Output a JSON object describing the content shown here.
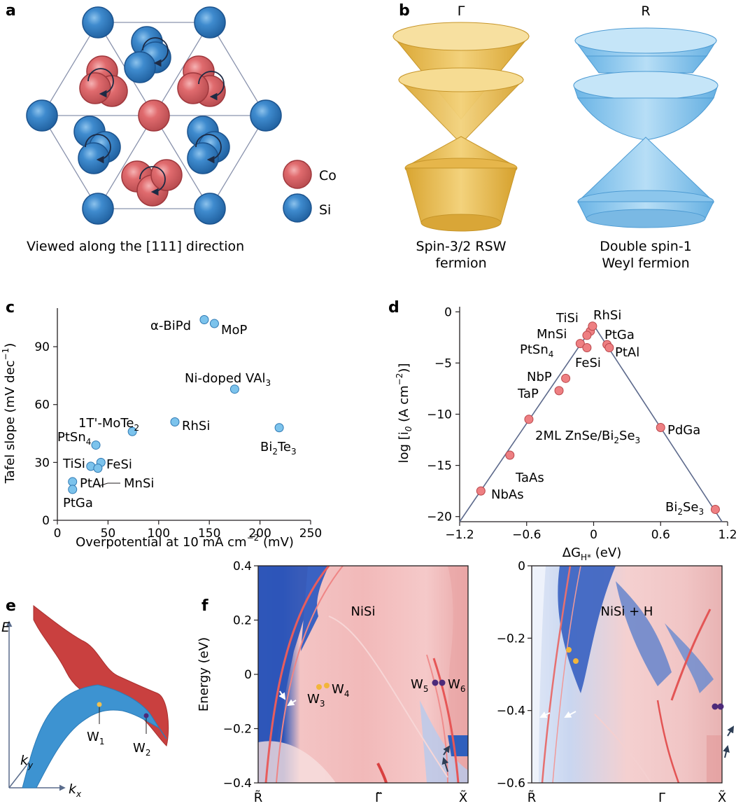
{
  "panels": {
    "a": "a",
    "b": "b",
    "c": "c",
    "d": "d",
    "e": "e",
    "f": "f"
  },
  "panel_a": {
    "caption": "Viewed along the [111] direction",
    "legend": [
      {
        "label": "Co",
        "color": "#e06b6e"
      },
      {
        "label": "Si",
        "color": "#3a86c8"
      }
    ]
  },
  "panel_b": {
    "gamma_label": "Γ",
    "r_label": "R",
    "gamma_caption_1": "Spin-3/2 RSW",
    "gamma_caption_2": "fermion",
    "r_caption_1": "Double spin-1",
    "r_caption_2": "Weyl fermion",
    "gamma_color": "#e8c15a",
    "r_color": "#8fc9ee"
  },
  "chart_data": [
    {
      "id": "c",
      "type": "scatter",
      "title": "",
      "xlabel": "Overpotential at 10 mA cm",
      "xlabel_sup": "−2",
      "xlabel_tail": " (mV)",
      "ylabel": "Tafel slope (mV dec",
      "ylabel_sup": "−1",
      "ylabel_tail": ")",
      "xlim": [
        0,
        250
      ],
      "ylim": [
        0,
        110
      ],
      "xticks": [
        "0",
        "50",
        "100",
        "150",
        "200",
        "250"
      ],
      "yticks": [
        "0",
        "30",
        "60",
        "90"
      ],
      "color": "#7cc3ec",
      "points": [
        {
          "name": "α-BiPd",
          "x": 145,
          "y": 104
        },
        {
          "name": "MoP",
          "x": 155,
          "y": 102
        },
        {
          "name": "Ni-doped VAl3",
          "x": 175,
          "y": 68
        },
        {
          "name": "Bi2Te3",
          "x": 219,
          "y": 48
        },
        {
          "name": "1T'-MoTe2",
          "x": 74,
          "y": 46
        },
        {
          "name": "RhSi",
          "x": 116,
          "y": 51
        },
        {
          "name": "PtSn4",
          "x": 38,
          "y": 39
        },
        {
          "name": "TiSi",
          "x": 33,
          "y": 28
        },
        {
          "name": "FeSi",
          "x": 43,
          "y": 30
        },
        {
          "name": "MnSi",
          "x": 40,
          "y": 27
        },
        {
          "name": "PtAl",
          "x": 15,
          "y": 20
        },
        {
          "name": "PtGa",
          "x": 15,
          "y": 16
        }
      ]
    },
    {
      "id": "d",
      "type": "scatter",
      "title": "",
      "xlabel": "ΔG",
      "xlabel_sub": "H*",
      "xlabel_tail": " (eV)",
      "ylabel": "log [i",
      "ylabel_sub": "0",
      "ylabel_tail": " (A cm",
      "ylabel_sup": "−2",
      "ylabel_end": ")]",
      "xlim": [
        -1.2,
        1.2
      ],
      "ylim": [
        -20.5,
        0.5
      ],
      "xticks": [
        "−1.2",
        "−0.6",
        "0",
        "0.6",
        "1.2"
      ],
      "yticks": [
        "0",
        "−5",
        "−10",
        "−15",
        "−20"
      ],
      "color": "#ee7f82",
      "volcano_line": [
        [
          -1.2,
          -20.5
        ],
        [
          0,
          -1.3
        ],
        [
          1.15,
          -20.5
        ]
      ],
      "points": [
        {
          "name": "TiSi",
          "x": -0.03,
          "y": -1.9
        },
        {
          "name": "RhSi",
          "x": -0.01,
          "y": -1.4
        },
        {
          "name": "MnSi",
          "x": -0.06,
          "y": -2.3
        },
        {
          "name": "PtGa",
          "x": 0.12,
          "y": -3.2
        },
        {
          "name": "PtSn4",
          "x": -0.12,
          "y": -3.1
        },
        {
          "name": "FeSi",
          "x": -0.06,
          "y": -3.5
        },
        {
          "name": "PtAl",
          "x": 0.14,
          "y": -3.5
        },
        {
          "name": "NbP",
          "x": -0.25,
          "y": -6.5
        },
        {
          "name": "TaP",
          "x": -0.31,
          "y": -7.7
        },
        {
          "name": "2ML ZnSe/Bi2Se3",
          "x": -0.58,
          "y": -10.5
        },
        {
          "name": "PdGa",
          "x": 0.6,
          "y": -11.3
        },
        {
          "name": "TaAs",
          "x": -0.75,
          "y": -14.0
        },
        {
          "name": "NbAs",
          "x": -1.01,
          "y": -17.5
        },
        {
          "name": "Bi2Se3",
          "x": 1.09,
          "y": -19.3
        }
      ]
    },
    {
      "id": "f-left",
      "type": "heatmap",
      "title": "NiSi",
      "ylabel": "Energy (eV)",
      "ylim": [
        -0.4,
        0.4
      ],
      "yticks": [
        "0.4",
        "0.2",
        "0",
        "−0.2",
        "−0.4"
      ],
      "xticks": [
        "R̃",
        "Γ̃",
        "X̃"
      ],
      "weyl_labels": [
        "W3",
        "W4",
        "W5",
        "W6"
      ]
    },
    {
      "id": "f-right",
      "type": "heatmap",
      "title": "NiSi + H",
      "ylim": [
        -0.6,
        0
      ],
      "yticks": [
        "0",
        "−0.2",
        "−0.4",
        "−0.6"
      ],
      "xticks": [
        "R̃",
        "Γ",
        "X̃"
      ]
    }
  ],
  "panel_c_labels": {
    "abipd": "α-BiPd",
    "mop": "MoP",
    "nivai": "Ni-doped VAl",
    "nivai_sub": "3",
    "bite": "Bi",
    "bite_sub1": "2",
    "bite_mid": "Te",
    "bite_sub2": "3",
    "mote": "1T'-MoTe",
    "mote_sub": "2",
    "rhsi": "RhSi",
    "ptsn": "PtSn",
    "ptsn_sub": "4",
    "tisi": "TiSi",
    "fesi": "FeSi",
    "mnsi": "MnSi",
    "ptal": "PtAl",
    "ptga": "PtGa"
  },
  "panel_d_labels": {
    "tisi": "TiSi",
    "rhsi": "RhSi",
    "mnsi": "MnSi",
    "ptga": "PtGa",
    "ptsn": "PtSn",
    "ptsn_sub": "4",
    "fesi": "FeSi",
    "ptal": "PtAl",
    "nbp": "NbP",
    "tap": "TaP",
    "znse": "2ML ZnSe/Bi",
    "znse_sub1": "2",
    "znse_mid": "Se",
    "znse_sub2": "3",
    "pdga": "PdGa",
    "taas": "TaAs",
    "nbas": "NbAs",
    "bise": "Bi",
    "bise_sub1": "2",
    "bise_mid": "Se",
    "bise_sub2": "3"
  },
  "panel_e": {
    "e_axis": "E",
    "ky_axis": "k",
    "ky_sub": "y",
    "kx_axis": "k",
    "kx_sub": "x",
    "w1": "W",
    "w1_sub": "1",
    "w2": "W",
    "w2_sub": "2",
    "upper_color": "#c9403f",
    "lower_color": "#3d93d1"
  },
  "panel_f": {
    "w_letter": "W",
    "w3_sub": "3",
    "w4_sub": "4",
    "w5_sub": "5",
    "w6_sub": "6"
  }
}
